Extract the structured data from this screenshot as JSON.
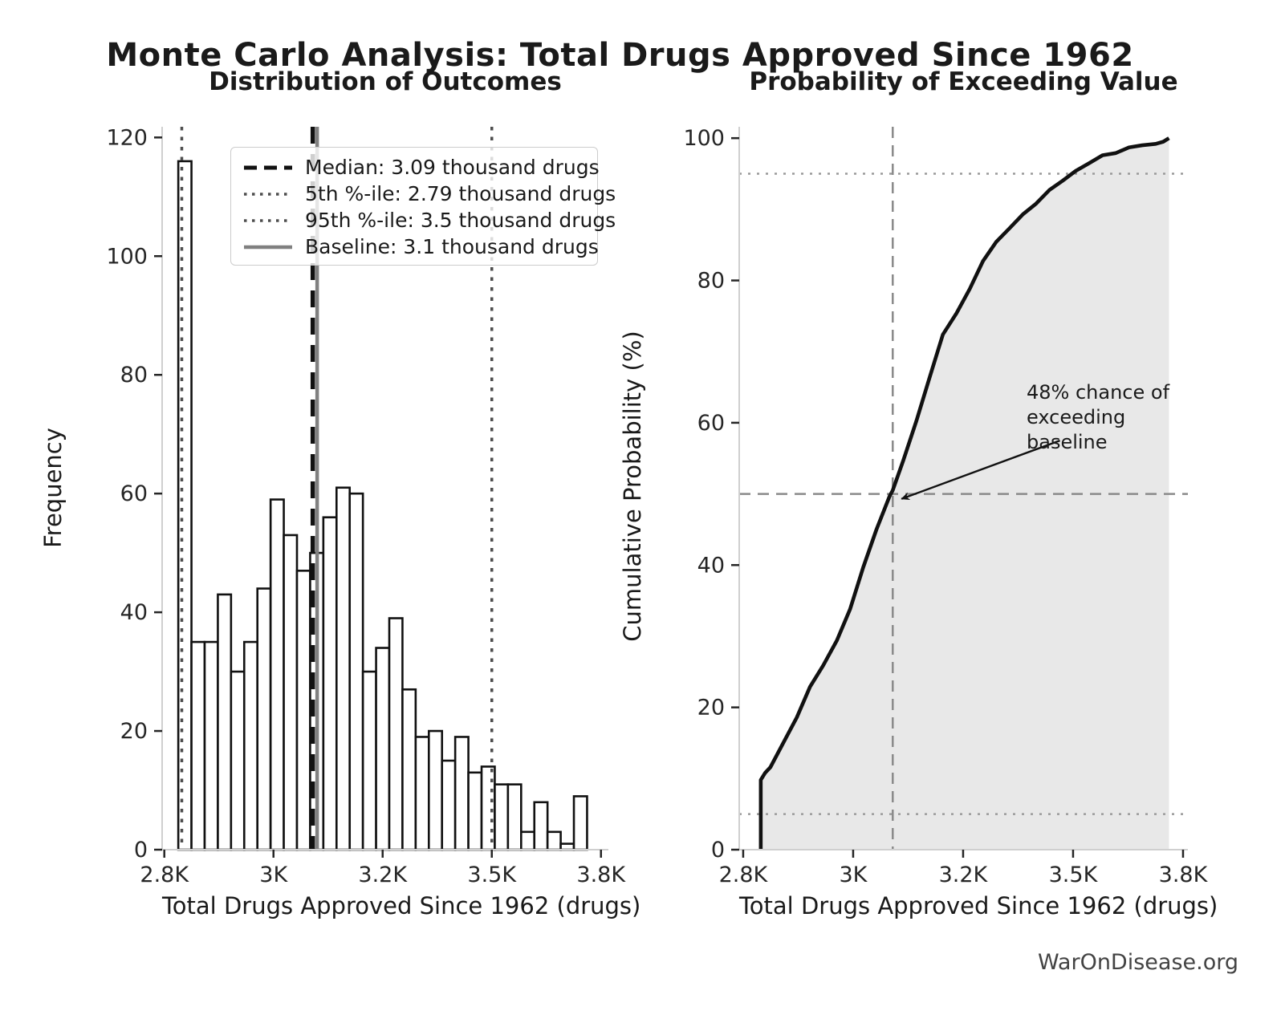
{
  "page": {
    "title": "Monte Carlo Analysis: Total Drugs Approved Since 1962",
    "footer": "WarOnDisease.org"
  },
  "colors": {
    "bar_fill": "#ffffff",
    "bar_edge": "#111111",
    "median_line": "#111111",
    "percentile_line": "#4d4d4d",
    "baseline_line": "#808080",
    "cdf_line": "#111111",
    "cdf_fill": "rgba(128,128,128,0.18)",
    "guide_dotted": "#9a9a9a",
    "guide_dashed": "#8a8a8a",
    "spine": "#cfcfcf",
    "tick": "#262626",
    "tick_label": "#262626"
  },
  "chart_data": [
    {
      "type": "bar",
      "title": "Distribution of Outcomes",
      "xlabel": "Total Drugs Approved Since 1962 (drugs)",
      "ylabel": "Frequency",
      "bin_start": 2782,
      "bin_width": 30.2,
      "counts": [
        116,
        35,
        35,
        43,
        30,
        35,
        44,
        59,
        53,
        47,
        50,
        56,
        61,
        60,
        30,
        34,
        39,
        27,
        19,
        20,
        15,
        19,
        13,
        14,
        11,
        11,
        3,
        8,
        3,
        1,
        9
      ],
      "total_simulations": 1000,
      "xlim": [
        2745,
        3767
      ],
      "ylim": [
        0,
        121.8
      ],
      "xticks": {
        "values": [
          2750,
          3000,
          3250,
          3500,
          3750
        ],
        "labels": [
          "2.8K",
          "3K",
          "3.2K",
          "3.5K",
          "3.8K"
        ]
      },
      "yticks": {
        "values": [
          0,
          20,
          40,
          60,
          80,
          100,
          120
        ],
        "labels": [
          "0",
          "20",
          "40",
          "60",
          "80",
          "100",
          "120"
        ]
      },
      "grid": false,
      "ref_lines": [
        {
          "name": "median",
          "value": 3090,
          "style": "dashed",
          "width": 5.5,
          "color_key": "median_line",
          "label": "Median: 3.09 thousand drugs"
        },
        {
          "name": "p5",
          "value": 2790,
          "style": "dotted",
          "width": 3.5,
          "color_key": "percentile_line",
          "label": "5th %-ile: 2.79 thousand drugs"
        },
        {
          "name": "p95",
          "value": 3500,
          "style": "dotted",
          "width": 3.5,
          "color_key": "percentile_line",
          "label": "95th %-ile: 3.5 thousand drugs"
        },
        {
          "name": "baseline",
          "value": 3100,
          "style": "solid",
          "width": 4.5,
          "color_key": "baseline_line",
          "label": "Baseline: 3.1 thousand drugs"
        }
      ],
      "legend_position": "upper left inside plot"
    },
    {
      "type": "line",
      "title": "Probability of Exceeding Value",
      "xlabel": "Total Drugs Approved Since 1962 (drugs)",
      "ylabel": "Cumulative Probability (%)",
      "points": [
        [
          2790,
          0
        ],
        [
          2790,
          9.8
        ],
        [
          2800,
          10.8
        ],
        [
          2812,
          11.6
        ],
        [
          2842,
          15.1
        ],
        [
          2872,
          18.6
        ],
        [
          2902,
          22.9
        ],
        [
          2932,
          25.9
        ],
        [
          2963,
          29.4
        ],
        [
          2993,
          33.8
        ],
        [
          3023,
          39.7
        ],
        [
          3053,
          45.0
        ],
        [
          3083,
          49.7
        ],
        [
          3090,
          50.5
        ],
        [
          3114,
          54.7
        ],
        [
          3144,
          60.3
        ],
        [
          3174,
          66.4
        ],
        [
          3204,
          72.4
        ],
        [
          3235,
          75.4
        ],
        [
          3265,
          78.8
        ],
        [
          3295,
          82.7
        ],
        [
          3325,
          85.4
        ],
        [
          3355,
          87.3
        ],
        [
          3386,
          89.3
        ],
        [
          3416,
          90.8
        ],
        [
          3446,
          92.7
        ],
        [
          3476,
          94.0
        ],
        [
          3506,
          95.4
        ],
        [
          3537,
          96.5
        ],
        [
          3567,
          97.6
        ],
        [
          3597,
          97.9
        ],
        [
          3627,
          98.7
        ],
        [
          3657,
          99.0
        ],
        [
          3688,
          99.2
        ],
        [
          3705,
          99.5
        ],
        [
          3718,
          100
        ]
      ],
      "fill_under_curve": true,
      "xlim": [
        2741,
        3761
      ],
      "ylim": [
        0,
        101.6
      ],
      "xticks": {
        "values": [
          2750,
          3000,
          3250,
          3500,
          3750
        ],
        "labels": [
          "2.8K",
          "3K",
          "3.2K",
          "3.5K",
          "3.8K"
        ]
      },
      "yticks": {
        "values": [
          0,
          20,
          40,
          60,
          80,
          100
        ],
        "labels": [
          "0",
          "20",
          "40",
          "60",
          "80",
          "100"
        ]
      },
      "grid": false,
      "guides": [
        {
          "axis": "y",
          "value": 95,
          "style": "dotted",
          "width": 2.5,
          "color_key": "guide_dotted"
        },
        {
          "axis": "y",
          "value": 5,
          "style": "dotted",
          "width": 2.5,
          "color_key": "guide_dotted"
        },
        {
          "axis": "y",
          "value": 50,
          "style": "dashed",
          "width": 2.5,
          "color_key": "guide_dashed"
        },
        {
          "axis": "x",
          "value": 3090,
          "style": "dashed",
          "width": 2.5,
          "color_key": "guide_dashed"
        }
      ],
      "annotation": {
        "text": "48% chance of\nexceeding baseline",
        "arrow_from_data": [
          3470,
          57.5
        ],
        "arrow_to_data": [
          3110,
          49.3
        ]
      }
    }
  ]
}
